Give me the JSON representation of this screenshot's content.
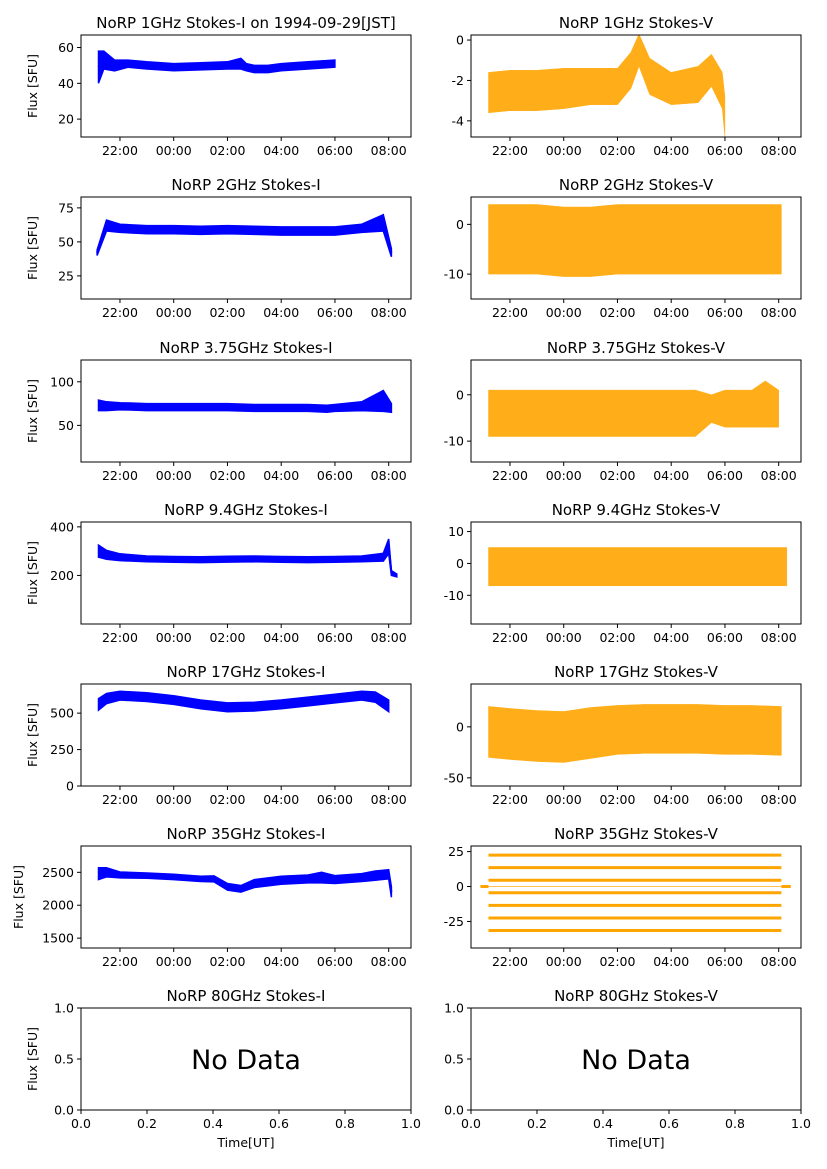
{
  "chart_data": [
    {
      "id": "p1-I",
      "type": "line",
      "title": "NoRP 1GHz Stokes-I on 1994-09-29[JST]",
      "ylabel": "Flux [SFU]",
      "xlabel": "",
      "color": "#0000ff",
      "xticks": [
        "22:00",
        "00:00",
        "02:00",
        "04:00",
        "06:00",
        "08:00"
      ],
      "yticks": [
        20,
        40,
        60
      ],
      "ylim": [
        10,
        67
      ],
      "series": [
        {
          "x": [
            21.2,
            21.4,
            21.8,
            22.3,
            23,
            0,
            1,
            2,
            2.5,
            2.7,
            3,
            3.5,
            4,
            5,
            6
          ],
          "y": [
            49,
            53,
            50,
            51,
            50,
            49,
            49.5,
            50,
            51,
            49,
            48,
            48,
            49,
            50,
            51
          ],
          "band": [
            9,
            5,
            3,
            2,
            2,
            2,
            2,
            2,
            3,
            2,
            2,
            2,
            2,
            2,
            2
          ]
        }
      ]
    },
    {
      "id": "p1-V",
      "type": "scatter",
      "title": "NoRP 1GHz Stokes-V",
      "ylabel": "",
      "xlabel": "",
      "color": "#ffa500",
      "xticks": [
        "22:00",
        "00:00",
        "02:00",
        "04:00",
        "06:00",
        "08:00"
      ],
      "yticks": [
        -4,
        -2,
        0
      ],
      "ylim": [
        -4.8,
        0.25
      ],
      "series": [
        {
          "x": [
            21.2,
            22,
            23,
            0,
            1,
            2,
            2.5,
            2.8,
            3.2,
            4,
            5,
            5.5,
            5.9,
            6.0
          ],
          "y": [
            -2.6,
            -2.5,
            -2.5,
            -2.4,
            -2.3,
            -2.3,
            -1.5,
            -0.5,
            -1.8,
            -2.4,
            -2.2,
            -1.5,
            -2.5,
            -3.8
          ],
          "band": [
            1,
            1,
            1,
            1,
            0.9,
            0.9,
            0.9,
            0.8,
            0.9,
            0.8,
            0.9,
            0.8,
            0.9,
            1
          ]
        }
      ]
    },
    {
      "id": "p2-I",
      "type": "line",
      "title": "NoRP 2GHz Stokes-I",
      "ylabel": "Flux [SFU]",
      "xlabel": "",
      "color": "#0000ff",
      "xticks": [
        "22:00",
        "00:00",
        "02:00",
        "04:00",
        "06:00",
        "08:00"
      ],
      "yticks": [
        25,
        50,
        75
      ],
      "ylim": [
        8,
        83
      ],
      "series": [
        {
          "x": [
            21.15,
            21.5,
            22,
            23,
            0,
            1,
            2,
            3,
            4,
            5,
            6,
            7,
            7.8,
            8.1
          ],
          "y": [
            42,
            62,
            60,
            59,
            59,
            58.5,
            59,
            58.5,
            58,
            58,
            58,
            60,
            64,
            42
          ],
          "band": [
            2,
            4,
            3,
            3,
            3,
            3,
            3,
            3,
            3,
            3,
            3,
            3,
            6,
            3
          ]
        }
      ]
    },
    {
      "id": "p2-V",
      "type": "scatter",
      "title": "NoRP 2GHz Stokes-V",
      "ylabel": "",
      "xlabel": "",
      "color": "#ffa500",
      "xticks": [
        "22:00",
        "00:00",
        "02:00",
        "04:00",
        "06:00",
        "08:00"
      ],
      "yticks": [
        -10,
        0
      ],
      "ylim": [
        -15,
        5.5
      ],
      "series": [
        {
          "x": [
            21.2,
            22,
            23,
            0,
            1,
            2,
            3,
            4,
            5,
            6,
            7,
            8.1
          ],
          "y": [
            -3,
            -3,
            -3,
            -3.5,
            -3.5,
            -3,
            -3,
            -3,
            -3,
            -3,
            -3,
            -3
          ],
          "band": [
            7,
            7,
            7,
            7,
            7,
            7,
            7,
            7,
            7,
            7,
            7,
            7
          ]
        }
      ]
    },
    {
      "id": "p3-I",
      "type": "line",
      "title": "NoRP 3.75GHz Stokes-I",
      "ylabel": "Flux [SFU]",
      "xlabel": "",
      "color": "#0000ff",
      "xticks": [
        "22:00",
        "00:00",
        "02:00",
        "04:00",
        "06:00",
        "08:00"
      ],
      "yticks": [
        50,
        100
      ],
      "ylim": [
        8,
        125
      ],
      "series": [
        {
          "x": [
            21.2,
            21.5,
            22,
            23,
            0,
            1,
            2,
            3,
            4,
            5,
            5.7,
            6,
            7,
            7.8,
            8.1
          ],
          "y": [
            73,
            72,
            72,
            71,
            71,
            71,
            71,
            70,
            70,
            70,
            69,
            70,
            72,
            78,
            70
          ],
          "band": [
            6,
            5,
            4,
            4,
            4,
            4,
            4,
            4,
            4,
            4,
            4,
            4,
            5,
            12,
            5
          ]
        }
      ]
    },
    {
      "id": "p3-V",
      "type": "scatter",
      "title": "NoRP 3.75GHz Stokes-V",
      "ylabel": "",
      "xlabel": "",
      "color": "#ffa500",
      "xticks": [
        "22:00",
        "00:00",
        "02:00",
        "04:00",
        "06:00",
        "08:00"
      ],
      "yticks": [
        -10,
        0
      ],
      "ylim": [
        -14.5,
        7.5
      ],
      "series": [
        {
          "x": [
            21.2,
            22,
            23,
            0,
            1,
            2,
            3,
            4,
            4.9,
            5.5,
            6,
            7,
            7.5,
            8
          ],
          "y": [
            -4,
            -4,
            -4,
            -4,
            -4,
            -4,
            -4,
            -4,
            -4,
            -3,
            -3,
            -3,
            -2,
            -3
          ],
          "band": [
            5,
            5,
            5,
            5,
            5,
            5,
            5,
            5,
            5,
            3,
            4,
            4,
            5,
            4
          ]
        }
      ]
    },
    {
      "id": "p4-I",
      "type": "line",
      "title": "NoRP 9.4GHz Stokes-I",
      "ylabel": "Flux [SFU]",
      "xlabel": "",
      "color": "#0000ff",
      "xticks": [
        "22:00",
        "00:00",
        "02:00",
        "04:00",
        "06:00",
        "08:00"
      ],
      "yticks": [
        200,
        400
      ],
      "ylim": [
        0,
        420
      ],
      "series": [
        {
          "x": [
            21.2,
            21.5,
            22,
            23,
            0,
            1,
            2,
            3,
            4,
            5,
            6,
            7,
            7.8,
            8.0,
            8.1,
            8.3
          ],
          "y": [
            300,
            285,
            275,
            268,
            266,
            265,
            267,
            268,
            266,
            265,
            266,
            268,
            275,
            320,
            210,
            200
          ],
          "band": [
            25,
            18,
            14,
            12,
            12,
            12,
            12,
            12,
            12,
            12,
            12,
            12,
            16,
            30,
            10,
            6
          ]
        }
      ]
    },
    {
      "id": "p4-V",
      "type": "scatter",
      "title": "NoRP 9.4GHz Stokes-V",
      "ylabel": "",
      "xlabel": "",
      "color": "#ffa500",
      "xticks": [
        "22:00",
        "00:00",
        "02:00",
        "04:00",
        "06:00",
        "08:00"
      ],
      "yticks": [
        -10,
        0,
        10
      ],
      "ylim": [
        -19,
        13
      ],
      "series": [
        {
          "x": [
            21.2,
            22,
            23,
            0,
            1,
            2,
            3,
            4,
            5,
            6,
            7,
            8.3
          ],
          "y": [
            -1,
            -1,
            -1,
            -1,
            -1,
            -1,
            -1,
            -1,
            -1,
            -1,
            -1,
            -1
          ],
          "band": [
            6,
            6,
            6,
            6,
            6,
            6,
            6,
            6,
            6,
            6,
            6,
            6
          ]
        }
      ]
    },
    {
      "id": "p5-I",
      "type": "line",
      "title": "NoRP 17GHz Stokes-I",
      "ylabel": "Flux [SFU]",
      "xlabel": "",
      "color": "#0000ff",
      "xticks": [
        "22:00",
        "00:00",
        "02:00",
        "04:00",
        "06:00",
        "08:00"
      ],
      "yticks": [
        0,
        250,
        500
      ],
      "ylim": [
        0,
        700
      ],
      "series": [
        {
          "x": [
            21.2,
            21.5,
            22,
            23,
            0,
            1,
            2,
            3,
            4,
            5,
            6,
            7,
            7.5,
            8
          ],
          "y": [
            560,
            600,
            620,
            610,
            590,
            560,
            540,
            545,
            560,
            580,
            600,
            620,
            610,
            550
          ],
          "band": [
            40,
            35,
            30,
            30,
            30,
            30,
            30,
            30,
            30,
            30,
            30,
            30,
            35,
            40
          ]
        }
      ]
    },
    {
      "id": "p5-V",
      "type": "scatter",
      "title": "NoRP 17GHz Stokes-V",
      "ylabel": "",
      "xlabel": "",
      "color": "#ffa500",
      "xticks": [
        "22:00",
        "00:00",
        "02:00",
        "04:00",
        "06:00",
        "08:00"
      ],
      "yticks": [
        -50,
        0
      ],
      "ylim": [
        -58,
        42
      ],
      "series": [
        {
          "x": [
            21.2,
            22,
            23,
            0,
            1,
            2,
            3,
            4,
            5,
            6,
            7,
            8.1
          ],
          "y": [
            -5,
            -7,
            -9,
            -10,
            -6,
            -3,
            -2,
            -2,
            -2,
            -3,
            -3,
            -4
          ],
          "band": [
            25,
            25,
            25,
            25,
            25,
            24,
            24,
            24,
            24,
            24,
            24,
            24
          ]
        }
      ]
    },
    {
      "id": "p6-I",
      "type": "line",
      "title": "NoRP 35GHz Stokes-I",
      "ylabel": "Flux [SFU]",
      "xlabel": "",
      "color": "#0000ff",
      "xticks": [
        "22:00",
        "00:00",
        "02:00",
        "04:00",
        "06:00",
        "08:00"
      ],
      "yticks": [
        1500,
        2000,
        2500
      ],
      "ylim": [
        1350,
        2900
      ],
      "series": [
        {
          "x": [
            21.2,
            21.5,
            22,
            23,
            0,
            1,
            1.5,
            2,
            2.5,
            3,
            4,
            5,
            5.5,
            6,
            7,
            7.5,
            8,
            8.1
          ],
          "y": [
            2480,
            2500,
            2460,
            2450,
            2430,
            2400,
            2400,
            2280,
            2250,
            2330,
            2380,
            2400,
            2420,
            2390,
            2420,
            2450,
            2470,
            2200
          ],
          "band": [
            90,
            70,
            45,
            40,
            40,
            40,
            45,
            50,
            50,
            60,
            60,
            60,
            80,
            60,
            60,
            70,
            70,
            80
          ]
        }
      ]
    },
    {
      "id": "p6-V",
      "type": "scatter",
      "title": "NoRP 35GHz Stokes-V",
      "ylabel": "",
      "xlabel": "",
      "color": "#ffa500",
      "xticks": [
        "22:00",
        "00:00",
        "02:00",
        "04:00",
        "06:00",
        "08:00"
      ],
      "yticks": [
        -25,
        0,
        25
      ],
      "ylim": [
        -44,
        29
      ],
      "series": [
        {
          "x": [
            21.2,
            8.1
          ],
          "y": [
            0,
            0
          ],
          "band": [
            0,
            0
          ]
        }
      ],
      "levels": [
        22.5,
        13.5,
        4.5,
        -4.5,
        -13.5,
        -22.5,
        -31.5
      ]
    },
    {
      "id": "p7-I",
      "type": "empty",
      "title": "NoRP 80GHz Stokes-I",
      "ylabel": "Flux [SFU]",
      "xlabel": "Time[UT]",
      "annotation": "No Data",
      "xticks": [
        "0.0",
        "0.2",
        "0.4",
        "0.6",
        "0.8",
        "1.0"
      ],
      "yticks": [
        "0.0",
        "0.5",
        "1.0"
      ],
      "xlim": [
        0,
        1
      ],
      "ylim": [
        0,
        1
      ]
    },
    {
      "id": "p7-V",
      "type": "empty",
      "title": "NoRP 80GHz Stokes-V",
      "ylabel": "",
      "xlabel": "Time[UT]",
      "annotation": "No Data",
      "xticks": [
        "0.0",
        "0.2",
        "0.4",
        "0.6",
        "0.8",
        "1.0"
      ],
      "yticks": [
        "0.0",
        "0.5",
        "1.0"
      ],
      "xlim": [
        0,
        1
      ],
      "ylim": [
        0,
        1
      ]
    }
  ]
}
